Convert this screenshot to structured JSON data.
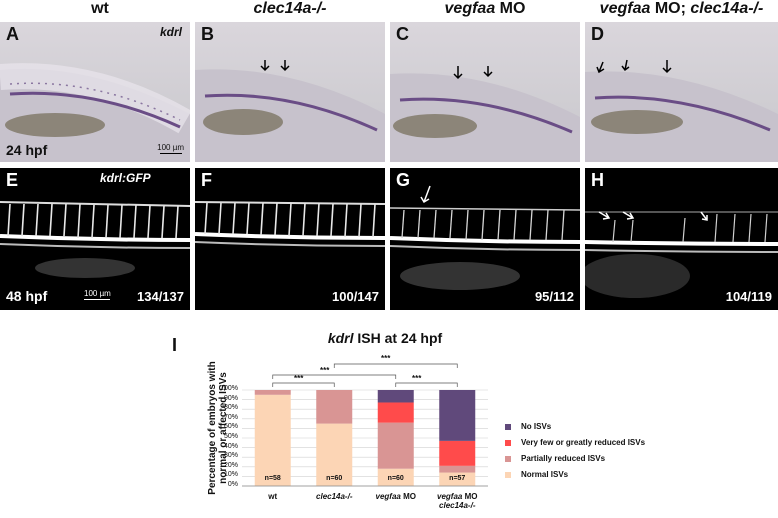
{
  "columns": [
    {
      "prefix": "",
      "italic": "",
      "plain": "wt"
    },
    {
      "prefix": "",
      "italic": "clec14a-/-",
      "plain": ""
    },
    {
      "prefix": "",
      "italic": "vegfaa",
      "plain": " MO"
    },
    {
      "prefix": "",
      "italic": "vegfaa",
      "plain": " MO; "
    }
  ],
  "col4_extra": "clec14a-/-",
  "panels": {
    "A": "A",
    "B": "B",
    "C": "C",
    "D": "D",
    "E": "E",
    "F": "F",
    "G": "G",
    "H": "H",
    "I": "I"
  },
  "ish_gene": "kdrl",
  "fluo_gene": "kdrl:GFP",
  "stage_top": "24 hpf",
  "stage_bottom": "48 hpf",
  "scale_top": "100 µm",
  "scale_bottom": "100 µm",
  "ratios": [
    "134/137",
    "100/147",
    "95/112",
    "104/119"
  ],
  "chart_title_italic": "kdrl",
  "chart_title_rest": " ISH at 24 hpf",
  "y_axis_label_line1": "Percentage of embryos with",
  "y_axis_label_line2": "normal or affected ISVs",
  "significance": [
    "***",
    "***",
    "***",
    "***"
  ],
  "chart_data": {
    "type": "bar",
    "stacked": true,
    "categories": [
      "wt",
      "clec14a-/-",
      "vegfaa MO",
      "vegfaa MO clec14a-/-"
    ],
    "n_labels": [
      "n=58",
      "n=60",
      "n=60",
      "n=57"
    ],
    "y_ticks": [
      "0%",
      "10%",
      "20%",
      "30%",
      "40%",
      "50%",
      "60%",
      "70%",
      "80%",
      "90%",
      "100%"
    ],
    "ylim": [
      0,
      100
    ],
    "series": [
      {
        "name": "Normal ISVs",
        "color": "#fcd5b5",
        "values": [
          95,
          65,
          18,
          14
        ]
      },
      {
        "name": "Partially reduced ISVs",
        "color": "#d99594",
        "values": [
          5,
          35,
          48,
          7
        ]
      },
      {
        "name": "Very few or greatly reduced ISVs",
        "color": "#ff4b4b",
        "values": [
          0,
          0,
          21,
          26
        ]
      },
      {
        "name": "No ISVs",
        "color": "#60497b",
        "values": [
          0,
          0,
          13,
          53
        ]
      }
    ],
    "legend_order": [
      "No ISVs",
      "Very few or greatly reduced ISVs",
      "Partially reduced ISVs",
      "Normal ISVs"
    ],
    "legend_placement": "right"
  }
}
